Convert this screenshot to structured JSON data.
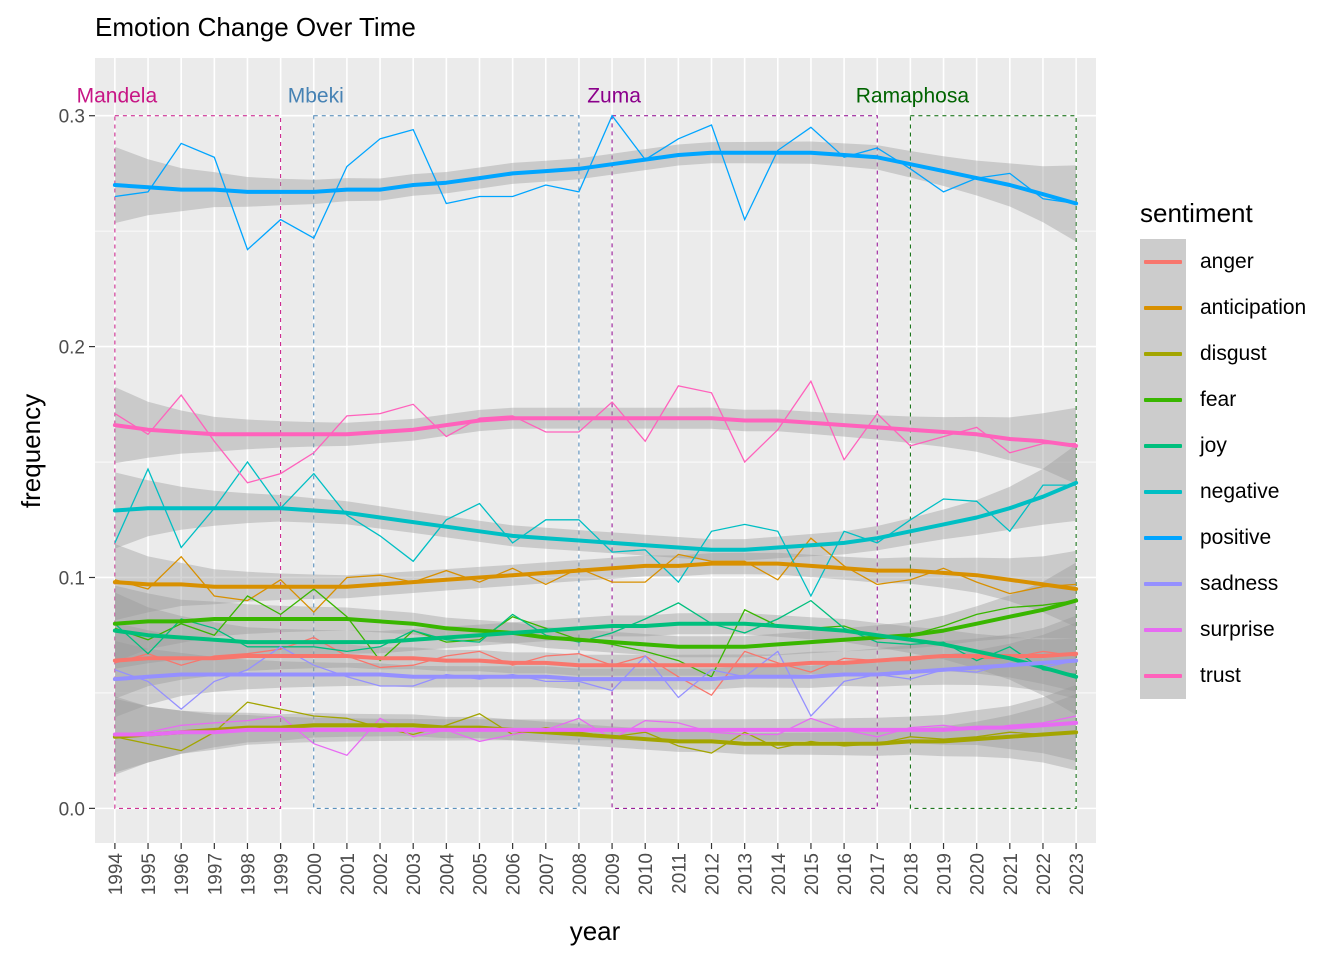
{
  "chart_data": {
    "type": "line",
    "title": "Emotion Change Over Time",
    "xlabel": "year",
    "ylabel": "frequency",
    "xlim": [
      1993.4,
      2023.6
    ],
    "ylim": [
      -0.015,
      0.325
    ],
    "x": [
      1994,
      1995,
      1996,
      1997,
      1998,
      1999,
      2000,
      2001,
      2002,
      2003,
      2004,
      2005,
      2006,
      2007,
      2008,
      2009,
      2010,
      2011,
      2012,
      2013,
      2014,
      2015,
      2016,
      2017,
      2018,
      2019,
      2020,
      2021,
      2022,
      2023
    ],
    "x_tick_labels": [
      "1994",
      "1995",
      "1996",
      "1997",
      "1998",
      "1999",
      "2000",
      "2001",
      "2002",
      "2003",
      "2004",
      "2005",
      "2006",
      "2007",
      "2008",
      "2009",
      "2010",
      "2011",
      "2012",
      "2013",
      "2014",
      "2015",
      "2016",
      "2017",
      "2018",
      "2019",
      "2020",
      "2021",
      "2022",
      "2023"
    ],
    "y_ticks": [
      0.0,
      0.1,
      0.2,
      0.3
    ],
    "y_tick_labels": [
      "0.0",
      "0.1",
      "0.2",
      "0.3"
    ],
    "grid": true,
    "legend_title": "sentiment",
    "legend_position": "right",
    "eras": [
      {
        "label": "Mandela",
        "start": 1994,
        "end": 1999,
        "color": "#C71585"
      },
      {
        "label": "Mbeki",
        "start": 2000,
        "end": 2008,
        "color": "#4682B4"
      },
      {
        "label": "Zuma",
        "start": 2009,
        "end": 2017,
        "color": "#8B008B"
      },
      {
        "label": "Ramaphosa",
        "start": 2018,
        "end": 2023,
        "color": "#006400"
      }
    ],
    "series": [
      {
        "name": "anger",
        "color": "#F8766D",
        "values": [
          0.063,
          0.067,
          0.062,
          0.066,
          0.067,
          0.069,
          0.074,
          0.066,
          0.061,
          0.062,
          0.066,
          0.068,
          0.062,
          0.066,
          0.067,
          0.062,
          0.066,
          0.057,
          0.049,
          0.068,
          0.063,
          0.059,
          0.065,
          0.064,
          0.064,
          0.066,
          0.065,
          0.065,
          0.068,
          0.066
        ],
        "smooth": [
          0.064,
          0.065,
          0.065,
          0.065,
          0.066,
          0.066,
          0.066,
          0.066,
          0.065,
          0.065,
          0.064,
          0.064,
          0.063,
          0.063,
          0.062,
          0.062,
          0.062,
          0.062,
          0.062,
          0.062,
          0.062,
          0.063,
          0.063,
          0.064,
          0.065,
          0.066,
          0.066,
          0.066,
          0.066,
          0.067
        ]
      },
      {
        "name": "anticipation",
        "color": "#D89000",
        "values": [
          0.099,
          0.095,
          0.109,
          0.092,
          0.09,
          0.099,
          0.085,
          0.1,
          0.101,
          0.098,
          0.103,
          0.098,
          0.104,
          0.097,
          0.104,
          0.098,
          0.098,
          0.11,
          0.107,
          0.107,
          0.099,
          0.117,
          0.105,
          0.097,
          0.099,
          0.104,
          0.098,
          0.093,
          0.096,
          0.097
        ],
        "smooth": [
          0.098,
          0.097,
          0.097,
          0.096,
          0.096,
          0.096,
          0.096,
          0.096,
          0.097,
          0.098,
          0.099,
          0.1,
          0.101,
          0.102,
          0.103,
          0.104,
          0.105,
          0.105,
          0.106,
          0.106,
          0.106,
          0.105,
          0.104,
          0.103,
          0.103,
          0.102,
          0.101,
          0.099,
          0.097,
          0.095
        ]
      },
      {
        "name": "disgust",
        "color": "#A3A500",
        "values": [
          0.031,
          0.028,
          0.025,
          0.033,
          0.046,
          0.043,
          0.04,
          0.039,
          0.035,
          0.032,
          0.036,
          0.041,
          0.032,
          0.035,
          0.033,
          0.031,
          0.033,
          0.027,
          0.024,
          0.033,
          0.026,
          0.029,
          0.027,
          0.028,
          0.031,
          0.03,
          0.031,
          0.033,
          0.032,
          0.033
        ],
        "smooth": [
          0.031,
          0.032,
          0.033,
          0.034,
          0.035,
          0.035,
          0.036,
          0.036,
          0.036,
          0.036,
          0.035,
          0.035,
          0.034,
          0.033,
          0.032,
          0.031,
          0.03,
          0.029,
          0.029,
          0.028,
          0.028,
          0.028,
          0.028,
          0.028,
          0.029,
          0.029,
          0.03,
          0.031,
          0.032,
          0.033
        ]
      },
      {
        "name": "fear",
        "color": "#39B600",
        "values": [
          0.078,
          0.073,
          0.08,
          0.075,
          0.092,
          0.084,
          0.095,
          0.083,
          0.064,
          0.077,
          0.072,
          0.073,
          0.083,
          0.078,
          0.073,
          0.071,
          0.068,
          0.064,
          0.057,
          0.086,
          0.079,
          0.078,
          0.079,
          0.074,
          0.075,
          0.079,
          0.084,
          0.087,
          0.088,
          0.09
        ],
        "smooth": [
          0.08,
          0.081,
          0.081,
          0.082,
          0.082,
          0.082,
          0.082,
          0.082,
          0.081,
          0.08,
          0.078,
          0.077,
          0.076,
          0.074,
          0.073,
          0.072,
          0.071,
          0.07,
          0.07,
          0.07,
          0.071,
          0.072,
          0.073,
          0.074,
          0.075,
          0.077,
          0.08,
          0.083,
          0.086,
          0.09
        ]
      },
      {
        "name": "joy",
        "color": "#00BF7D",
        "values": [
          0.08,
          0.067,
          0.082,
          0.078,
          0.07,
          0.07,
          0.07,
          0.068,
          0.07,
          0.077,
          0.073,
          0.072,
          0.084,
          0.075,
          0.072,
          0.076,
          0.082,
          0.089,
          0.08,
          0.076,
          0.082,
          0.09,
          0.078,
          0.072,
          0.071,
          0.072,
          0.064,
          0.07,
          0.06,
          0.058
        ],
        "smooth": [
          0.077,
          0.075,
          0.074,
          0.073,
          0.072,
          0.072,
          0.072,
          0.072,
          0.072,
          0.073,
          0.074,
          0.075,
          0.076,
          0.077,
          0.078,
          0.079,
          0.079,
          0.08,
          0.08,
          0.08,
          0.079,
          0.078,
          0.077,
          0.075,
          0.073,
          0.071,
          0.068,
          0.065,
          0.061,
          0.057
        ]
      },
      {
        "name": "negative",
        "color": "#00BFC4",
        "values": [
          0.115,
          0.147,
          0.113,
          0.13,
          0.15,
          0.13,
          0.145,
          0.127,
          0.118,
          0.107,
          0.125,
          0.132,
          0.115,
          0.125,
          0.125,
          0.111,
          0.112,
          0.098,
          0.12,
          0.123,
          0.12,
          0.092,
          0.12,
          0.115,
          0.125,
          0.134,
          0.133,
          0.12,
          0.14,
          0.14
        ],
        "smooth": [
          0.129,
          0.13,
          0.13,
          0.13,
          0.13,
          0.13,
          0.129,
          0.128,
          0.126,
          0.124,
          0.122,
          0.12,
          0.118,
          0.117,
          0.116,
          0.115,
          0.114,
          0.113,
          0.112,
          0.112,
          0.113,
          0.114,
          0.115,
          0.117,
          0.12,
          0.123,
          0.126,
          0.13,
          0.135,
          0.141
        ]
      },
      {
        "name": "positive",
        "color": "#00A5FF",
        "values": [
          0.265,
          0.267,
          0.288,
          0.282,
          0.242,
          0.255,
          0.247,
          0.278,
          0.29,
          0.294,
          0.262,
          0.265,
          0.265,
          0.27,
          0.267,
          0.3,
          0.281,
          0.29,
          0.296,
          0.255,
          0.285,
          0.295,
          0.282,
          0.286,
          0.277,
          0.267,
          0.273,
          0.275,
          0.264,
          0.262
        ],
        "smooth": [
          0.27,
          0.269,
          0.268,
          0.268,
          0.267,
          0.267,
          0.267,
          0.268,
          0.268,
          0.27,
          0.271,
          0.273,
          0.275,
          0.276,
          0.277,
          0.279,
          0.281,
          0.283,
          0.284,
          0.284,
          0.284,
          0.284,
          0.283,
          0.282,
          0.279,
          0.276,
          0.273,
          0.27,
          0.266,
          0.262
        ]
      },
      {
        "name": "sadness",
        "color": "#9590FF",
        "values": [
          0.06,
          0.055,
          0.043,
          0.055,
          0.06,
          0.07,
          0.062,
          0.057,
          0.053,
          0.053,
          0.058,
          0.056,
          0.058,
          0.055,
          0.055,
          0.051,
          0.066,
          0.048,
          0.06,
          0.057,
          0.068,
          0.04,
          0.055,
          0.058,
          0.056,
          0.06,
          0.059,
          0.063,
          0.061,
          0.064
        ],
        "smooth": [
          0.056,
          0.057,
          0.058,
          0.058,
          0.058,
          0.058,
          0.058,
          0.058,
          0.058,
          0.057,
          0.057,
          0.057,
          0.057,
          0.057,
          0.056,
          0.056,
          0.056,
          0.056,
          0.056,
          0.057,
          0.057,
          0.057,
          0.058,
          0.058,
          0.059,
          0.06,
          0.061,
          0.062,
          0.063,
          0.064
        ]
      },
      {
        "name": "surprise",
        "color": "#E76BF3",
        "values": [
          0.032,
          0.033,
          0.036,
          0.037,
          0.038,
          0.04,
          0.028,
          0.023,
          0.039,
          0.031,
          0.034,
          0.029,
          0.032,
          0.034,
          0.039,
          0.03,
          0.038,
          0.037,
          0.033,
          0.032,
          0.032,
          0.039,
          0.034,
          0.031,
          0.035,
          0.036,
          0.034,
          0.036,
          0.037,
          0.04
        ],
        "smooth": [
          0.032,
          0.032,
          0.033,
          0.033,
          0.034,
          0.034,
          0.034,
          0.034,
          0.034,
          0.034,
          0.034,
          0.034,
          0.034,
          0.034,
          0.034,
          0.034,
          0.034,
          0.034,
          0.034,
          0.034,
          0.034,
          0.034,
          0.034,
          0.034,
          0.034,
          0.034,
          0.035,
          0.035,
          0.036,
          0.037
        ]
      },
      {
        "name": "trust",
        "color": "#FF62BC",
        "values": [
          0.171,
          0.162,
          0.179,
          0.159,
          0.141,
          0.145,
          0.154,
          0.17,
          0.171,
          0.175,
          0.161,
          0.169,
          0.17,
          0.163,
          0.163,
          0.176,
          0.159,
          0.183,
          0.18,
          0.15,
          0.164,
          0.185,
          0.151,
          0.171,
          0.157,
          0.161,
          0.165,
          0.154,
          0.158,
          0.158
        ],
        "smooth": [
          0.166,
          0.164,
          0.163,
          0.162,
          0.162,
          0.162,
          0.162,
          0.162,
          0.163,
          0.164,
          0.166,
          0.168,
          0.169,
          0.169,
          0.169,
          0.169,
          0.169,
          0.169,
          0.169,
          0.168,
          0.168,
          0.167,
          0.166,
          0.165,
          0.164,
          0.163,
          0.162,
          0.16,
          0.159,
          0.157
        ]
      }
    ]
  }
}
